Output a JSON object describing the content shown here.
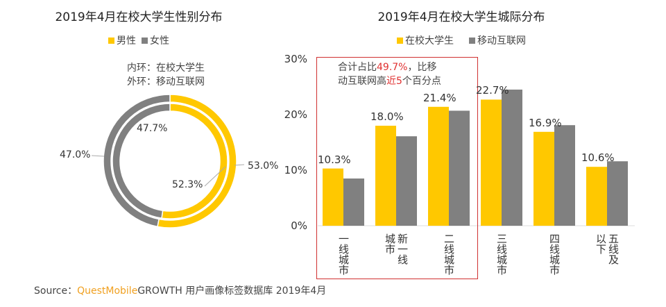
{
  "watermark": "QUESTMOBILE",
  "colors": {
    "male": "#FFC800",
    "female": "#808080",
    "student": "#FFC800",
    "mobile": "#808080",
    "highlight": "#E03030",
    "box": "#D03030"
  },
  "chart_data": [
    {
      "type": "pie",
      "title": "2019年4月在校大学生性别分布",
      "legend": [
        "男性",
        "女性"
      ],
      "note": [
        "内环：在校大学生",
        "外环：移动互联网"
      ],
      "rings": [
        {
          "name": "内环：在校大学生",
          "values": [
            52.3,
            47.7
          ],
          "labels": [
            "52.3%",
            "47.7%"
          ]
        },
        {
          "name": "外环：移动互联网",
          "values": [
            53.0,
            47.0
          ],
          "labels": [
            "53.0%",
            "47.0%"
          ]
        }
      ]
    },
    {
      "type": "bar",
      "title": "2019年4月在校大学生城际分布",
      "categories": [
        "一线城市",
        "新一线城市",
        "二线城市",
        "三线城市",
        "四线城市",
        "五线及以下"
      ],
      "series": [
        {
          "name": "在校大学生",
          "values": [
            10.3,
            18.0,
            21.4,
            22.7,
            16.9,
            10.6
          ]
        },
        {
          "name": "移动互联网",
          "values": [
            8.5,
            16.1,
            20.7,
            24.5,
            18.1,
            11.6
          ]
        }
      ],
      "data_labels": [
        "10.3%",
        "18.0%",
        "21.4%",
        "22.7%",
        "16.9%",
        "10.6%"
      ],
      "yticks": [
        "0%",
        "10%",
        "20%",
        "30%"
      ],
      "ylim": [
        0,
        30
      ],
      "legend_position": "top",
      "annotation": {
        "parts": [
          "合计占比",
          "49.7%",
          "，比移",
          "动互联网高",
          "近5",
          "个百分点"
        ]
      }
    }
  ],
  "source": {
    "prefix": "Source：",
    "brand": "QuestMobile",
    "text": "GROWTH 用户画像标签数据库  2019年4月"
  }
}
